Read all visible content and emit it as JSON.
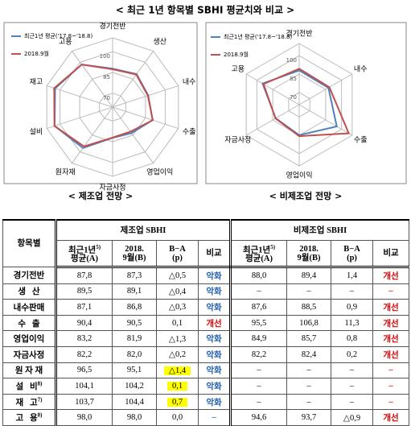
{
  "title": "< 최근 1년 항목별 SBHI 평균치와 비교 >",
  "chart_data": [
    {
      "type": "radar",
      "caption": "< 제조업 전망 >",
      "categories": [
        "경기전반",
        "생산",
        "내수",
        "수출",
        "영업이익",
        "자금사정",
        "원자재",
        "설비",
        "재고",
        "고용"
      ],
      "series": [
        {
          "name": "최근1년 평균('17.8~'18.8)",
          "color": "#4f81bd",
          "values": [
            87.8,
            89.5,
            87.1,
            90.4,
            83.2,
            82.2,
            96.5,
            104.1,
            103.7,
            98.0
          ]
        },
        {
          "name": "2018.9월",
          "color": "#c0504d",
          "values": [
            87.3,
            89.1,
            86.8,
            90.5,
            81.9,
            82.0,
            95.1,
            104.2,
            104.4,
            98.0
          ]
        }
      ],
      "rlim": [
        60,
        110
      ],
      "rticks": [
        70,
        85,
        100
      ]
    },
    {
      "type": "radar",
      "caption": "< 비제조업 전망 >",
      "categories": [
        "경기전반",
        "내수",
        "수출",
        "영업이익",
        "자금사정",
        "고용"
      ],
      "series": [
        {
          "name": "최근1년 평균('17.8~'18.8)",
          "color": "#4f81bd",
          "values": [
            88.0,
            87.6,
            95.5,
            84.9,
            82.2,
            94.6
          ]
        },
        {
          "name": "2018.9월",
          "color": "#c0504d",
          "values": [
            89.4,
            88.5,
            106.8,
            85.7,
            82.4,
            93.7
          ]
        }
      ],
      "rlim": [
        60,
        110
      ],
      "rticks": [
        70,
        85,
        100
      ]
    }
  ],
  "table": {
    "corner": "항목별",
    "sections": [
      "제조업 SBHI",
      "비제조업 SBHI"
    ],
    "subheaders": [
      {
        "lines": [
          "최근1년",
          "평균(A)"
        ],
        "note": "5)"
      },
      {
        "lines": [
          "2018.",
          "9월(B)"
        ]
      },
      {
        "lines": [
          "B−A",
          "(p)"
        ]
      },
      {
        "lines": [
          "비교"
        ]
      }
    ],
    "compare_colors": {
      "악화": "#1f5fae",
      "개선": "#e00000"
    },
    "highlight_color": "#ffff00",
    "rows": [
      {
        "label": "경기전반",
        "cells": [
          [
            "87,8",
            "87,3",
            "△0,5",
            "악화"
          ],
          [
            "88,0",
            "89,4",
            "1,4",
            "개선"
          ]
        ]
      },
      {
        "label": "생   산",
        "cells": [
          [
            "89,5",
            "89,1",
            "△0,4",
            "악화"
          ],
          [
            "–",
            "–",
            "–",
            "–"
          ]
        ]
      },
      {
        "label": "내수판매",
        "cells": [
          [
            "87,1",
            "86,8",
            "△0,3",
            "악화"
          ],
          [
            "87,6",
            "88,5",
            "0,9",
            "개선"
          ]
        ]
      },
      {
        "label": "수   출",
        "cells": [
          [
            "90,4",
            "90,5",
            "0,1",
            "개선"
          ],
          [
            "95,5",
            "106,8",
            "11,3",
            "개선"
          ]
        ]
      },
      {
        "label": "영업이익",
        "cells": [
          [
            "83,2",
            "81,9",
            "△1,3",
            "악화"
          ],
          [
            "84,9",
            "85,7",
            "0,8",
            "개선"
          ]
        ]
      },
      {
        "label": "자금사정",
        "cells": [
          [
            "82,2",
            "82,0",
            "△0,2",
            "악화"
          ],
          [
            "82,2",
            "82,4",
            "0,2",
            "개선"
          ]
        ]
      },
      {
        "label": "원 자 재",
        "highlight": true,
        "cells": [
          [
            "96,5",
            "95,1",
            "△1,4",
            "악화"
          ],
          [
            "–",
            "–",
            "–",
            "–"
          ]
        ]
      },
      {
        "label": "설   비",
        "note": "8)",
        "highlight": true,
        "cells": [
          [
            "104,1",
            "104,2",
            "0,1",
            "악화"
          ],
          [
            "–",
            "–",
            "–",
            "–"
          ]
        ]
      },
      {
        "label": "재   고",
        "note": "7)",
        "highlight": true,
        "cells": [
          [
            "103,7",
            "104,4",
            "0,7",
            "악화"
          ],
          [
            "–",
            "–",
            "–",
            "–"
          ]
        ]
      },
      {
        "label": "고   용",
        "note": "8)",
        "cells": [
          [
            "98,0",
            "98,0",
            "0,0",
            "–"
          ],
          [
            "94,6",
            "93,7",
            "△0,9",
            "개선"
          ]
        ]
      }
    ]
  }
}
